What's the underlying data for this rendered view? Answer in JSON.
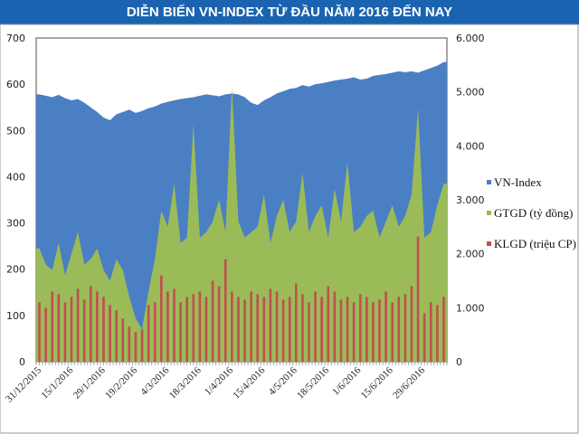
{
  "chart_data": {
    "type": "area",
    "title": "DIỄN BIẾN VN-INDEX TỪ ĐẦU NĂM 2016 ĐẾN NAY",
    "x_tick_labels": [
      "31/12/2015",
      "15/1/2016",
      "29/1/2016",
      "19/2/2016",
      "4/3/2016",
      "18/3/2016",
      "1/4/2016",
      "15/4/2016",
      "4/5/2016",
      "18/5/2016",
      "1/6/2016",
      "15/6/2016",
      "29/6/2016"
    ],
    "y_left": {
      "ylim": [
        0,
        700
      ],
      "ticks": [
        "0",
        "100",
        "200",
        "300",
        "400",
        "500",
        "600",
        "700"
      ]
    },
    "y_right": {
      "ylim": [
        0,
        6000
      ],
      "ticks": [
        "0",
        "1.000",
        "2.000",
        "3.000",
        "4.000",
        "5.000",
        "6.000"
      ]
    },
    "legend_position": "right",
    "grid": false,
    "series": [
      {
        "name": "VN-Index",
        "type": "area",
        "axis": "left",
        "color": "#4a7fc4",
        "values": [
          578,
          575,
          572,
          577,
          570,
          565,
          568,
          560,
          550,
          540,
          528,
          522,
          535,
          540,
          545,
          538,
          542,
          548,
          552,
          558,
          562,
          565,
          568,
          570,
          572,
          575,
          578,
          576,
          574,
          578,
          580,
          578,
          572,
          560,
          555,
          565,
          572,
          580,
          585,
          590,
          592,
          598,
          595,
          600,
          602,
          605,
          608,
          610,
          612,
          615,
          610,
          612,
          618,
          620,
          622,
          625,
          628,
          626,
          628,
          625,
          630,
          635,
          640,
          648
        ]
      },
      {
        "name": "GTGD (tỷ đồng)",
        "type": "area",
        "axis": "right",
        "color": "#9bbb59",
        "values": [
          2100,
          1800,
          1700,
          2200,
          1600,
          2000,
          2400,
          1800,
          1900,
          2100,
          1700,
          1500,
          1900,
          1700,
          1200,
          800,
          600,
          1300,
          1900,
          2800,
          2500,
          3300,
          2200,
          2300,
          4400,
          2300,
          2400,
          2600,
          3000,
          2400,
          5100,
          2600,
          2300,
          2400,
          2500,
          3100,
          2200,
          2700,
          3000,
          2400,
          2600,
          3500,
          2400,
          2700,
          2900,
          2300,
          3200,
          2600,
          3700,
          2400,
          2500,
          2700,
          2800,
          2300,
          2600,
          2900,
          2500,
          2700,
          3100,
          4700,
          2300,
          2400,
          2900,
          3300
        ]
      },
      {
        "name": "KLGD (triệu CP)",
        "type": "bar",
        "axis": "right",
        "color": "#c0504d",
        "values": [
          1100,
          1000,
          1300,
          1250,
          1100,
          1200,
          1350,
          1150,
          1400,
          1300,
          1200,
          1050,
          950,
          800,
          650,
          550,
          600,
          1050,
          1100,
          1600,
          1300,
          1350,
          1100,
          1200,
          1250,
          1300,
          1200,
          1500,
          1400,
          1900,
          1300,
          1200,
          1150,
          1300,
          1250,
          1200,
          1350,
          1300,
          1150,
          1200,
          1450,
          1250,
          1100,
          1300,
          1200,
          1400,
          1300,
          1150,
          1200,
          1100,
          1250,
          1200,
          1100,
          1150,
          1300,
          1100,
          1200,
          1250,
          1400,
          2320,
          900,
          1100,
          1050,
          1200
        ]
      }
    ]
  }
}
